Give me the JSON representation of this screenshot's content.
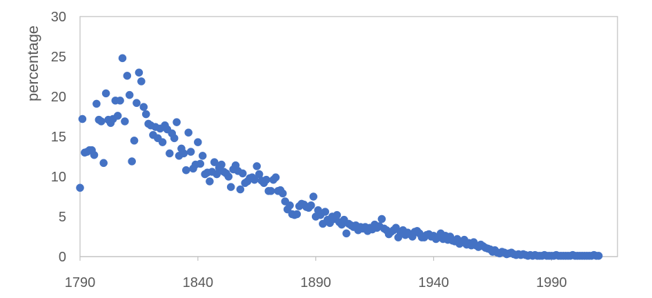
{
  "chart_data": {
    "type": "scatter",
    "title": "",
    "xlabel": "",
    "ylabel": "percentage",
    "xlim": [
      1790,
      2018
    ],
    "ylim": [
      0,
      30
    ],
    "xticks": [
      1790,
      1840,
      1890,
      1940,
      1990
    ],
    "yticks": [
      0,
      5,
      10,
      15,
      20,
      25,
      30
    ],
    "grid": false,
    "legend": "none",
    "colors": {
      "marker": "#4472C4",
      "axis": "#BFBFBF",
      "text": "#595959"
    },
    "series": [
      {
        "points": [
          [
            1790,
            8.6
          ],
          [
            1791,
            17.2
          ],
          [
            1792,
            13.0
          ],
          [
            1793,
            13.1
          ],
          [
            1794,
            13.3
          ],
          [
            1795,
            13.3
          ],
          [
            1796,
            12.7
          ],
          [
            1797,
            19.1
          ],
          [
            1798,
            17.1
          ],
          [
            1799,
            16.9
          ],
          [
            1800,
            11.7
          ],
          [
            1801,
            20.4
          ],
          [
            1802,
            17.1
          ],
          [
            1803,
            16.7
          ],
          [
            1804,
            17.2
          ],
          [
            1805,
            19.5
          ],
          [
            1806,
            17.6
          ],
          [
            1807,
            19.5
          ],
          [
            1808,
            24.8
          ],
          [
            1809,
            16.9
          ],
          [
            1810,
            22.6
          ],
          [
            1811,
            20.2
          ],
          [
            1812,
            11.9
          ],
          [
            1813,
            14.5
          ],
          [
            1814,
            19.2
          ],
          [
            1815,
            23.0
          ],
          [
            1816,
            21.9
          ],
          [
            1817,
            18.7
          ],
          [
            1818,
            17.8
          ],
          [
            1819,
            16.6
          ],
          [
            1820,
            16.4
          ],
          [
            1821,
            15.2
          ],
          [
            1822,
            16.2
          ],
          [
            1823,
            14.8
          ],
          [
            1824,
            16.0
          ],
          [
            1825,
            14.3
          ],
          [
            1826,
            16.4
          ],
          [
            1827,
            15.9
          ],
          [
            1828,
            12.9
          ],
          [
            1829,
            15.4
          ],
          [
            1830,
            14.8
          ],
          [
            1831,
            16.8
          ],
          [
            1832,
            12.6
          ],
          [
            1833,
            13.5
          ],
          [
            1834,
            12.9
          ],
          [
            1835,
            10.8
          ],
          [
            1836,
            15.5
          ],
          [
            1837,
            13.1
          ],
          [
            1838,
            11.0
          ],
          [
            1839,
            11.5
          ],
          [
            1840,
            14.3
          ],
          [
            1841,
            11.6
          ],
          [
            1842,
            12.6
          ],
          [
            1843,
            10.3
          ],
          [
            1844,
            10.5
          ],
          [
            1845,
            9.4
          ],
          [
            1846,
            10.6
          ],
          [
            1847,
            11.8
          ],
          [
            1848,
            10.3
          ],
          [
            1849,
            11.1
          ],
          [
            1850,
            11.5
          ],
          [
            1851,
            10.6
          ],
          [
            1852,
            10.4
          ],
          [
            1853,
            10.0
          ],
          [
            1854,
            8.7
          ],
          [
            1855,
            10.9
          ],
          [
            1856,
            11.4
          ],
          [
            1857,
            10.7
          ],
          [
            1858,
            8.4
          ],
          [
            1859,
            10.4
          ],
          [
            1860,
            9.2
          ],
          [
            1861,
            9.4
          ],
          [
            1862,
            9.8
          ],
          [
            1863,
            9.9
          ],
          [
            1864,
            9.6
          ],
          [
            1865,
            11.3
          ],
          [
            1866,
            10.3
          ],
          [
            1867,
            9.5
          ],
          [
            1868,
            9.2
          ],
          [
            1869,
            9.6
          ],
          [
            1870,
            8.2
          ],
          [
            1871,
            8.2
          ],
          [
            1872,
            9.6
          ],
          [
            1873,
            9.9
          ],
          [
            1874,
            8.2
          ],
          [
            1875,
            8.3
          ],
          [
            1876,
            7.9
          ],
          [
            1877,
            6.9
          ],
          [
            1878,
            5.9
          ],
          [
            1879,
            6.4
          ],
          [
            1880,
            5.3
          ],
          [
            1881,
            5.2
          ],
          [
            1882,
            5.3
          ],
          [
            1883,
            6.3
          ],
          [
            1884,
            6.6
          ],
          [
            1885,
            6.5
          ],
          [
            1886,
            6.2
          ],
          [
            1887,
            6.1
          ],
          [
            1888,
            6.4
          ],
          [
            1889,
            7.5
          ],
          [
            1890,
            5.0
          ],
          [
            1891,
            5.8
          ],
          [
            1892,
            5.2
          ],
          [
            1893,
            4.1
          ],
          [
            1894,
            5.6
          ],
          [
            1895,
            4.6
          ],
          [
            1896,
            4.2
          ],
          [
            1897,
            5.0
          ],
          [
            1898,
            4.7
          ],
          [
            1899,
            5.2
          ],
          [
            1900,
            4.3
          ],
          [
            1901,
            4.0
          ],
          [
            1902,
            4.6
          ],
          [
            1903,
            2.9
          ],
          [
            1904,
            4.1
          ],
          [
            1905,
            3.9
          ],
          [
            1906,
            3.7
          ],
          [
            1907,
            3.9
          ],
          [
            1908,
            3.3
          ],
          [
            1909,
            3.7
          ],
          [
            1910,
            3.5
          ],
          [
            1911,
            3.7
          ],
          [
            1912,
            3.2
          ],
          [
            1913,
            3.6
          ],
          [
            1914,
            3.4
          ],
          [
            1915,
            4.0
          ],
          [
            1916,
            3.6
          ],
          [
            1917,
            3.8
          ],
          [
            1918,
            4.7
          ],
          [
            1919,
            3.5
          ],
          [
            1920,
            3.3
          ],
          [
            1921,
            2.8
          ],
          [
            1922,
            3.1
          ],
          [
            1923,
            3.3
          ],
          [
            1924,
            3.6
          ],
          [
            1925,
            2.4
          ],
          [
            1926,
            3.0
          ],
          [
            1927,
            3.3
          ],
          [
            1928,
            2.7
          ],
          [
            1929,
            3.0
          ],
          [
            1930,
            2.8
          ],
          [
            1931,
            2.5
          ],
          [
            1932,
            3.1
          ],
          [
            1933,
            3.2
          ],
          [
            1934,
            2.9
          ],
          [
            1935,
            2.4
          ],
          [
            1936,
            2.4
          ],
          [
            1937,
            2.7
          ],
          [
            1938,
            2.8
          ],
          [
            1939,
            2.5
          ],
          [
            1940,
            2.6
          ],
          [
            1941,
            2.2
          ],
          [
            1942,
            2.4
          ],
          [
            1943,
            2.9
          ],
          [
            1944,
            2.2
          ],
          [
            1945,
            2.6
          ],
          [
            1946,
            2.1
          ],
          [
            1947,
            2.5
          ],
          [
            1948,
            2.0
          ],
          [
            1949,
            1.9
          ],
          [
            1950,
            2.2
          ],
          [
            1951,
            1.6
          ],
          [
            1952,
            1.8
          ],
          [
            1953,
            2.1
          ],
          [
            1954,
            1.5
          ],
          [
            1955,
            1.7
          ],
          [
            1956,
            1.4
          ],
          [
            1957,
            1.8
          ],
          [
            1958,
            1.4
          ],
          [
            1959,
            1.2
          ],
          [
            1960,
            1.5
          ],
          [
            1961,
            1.3
          ],
          [
            1962,
            1.1
          ],
          [
            1963,
            1.0
          ],
          [
            1964,
            0.9
          ],
          [
            1965,
            0.6
          ],
          [
            1966,
            0.8
          ],
          [
            1967,
            0.5
          ],
          [
            1968,
            0.4
          ],
          [
            1969,
            0.6
          ],
          [
            1970,
            0.5
          ],
          [
            1971,
            0.3
          ],
          [
            1972,
            0.4
          ],
          [
            1973,
            0.5
          ],
          [
            1974,
            0.3
          ],
          [
            1975,
            0.2
          ],
          [
            1976,
            0.3
          ],
          [
            1977,
            0.2
          ],
          [
            1978,
            0.3
          ],
          [
            1979,
            0.2
          ],
          [
            1980,
            0.1
          ],
          [
            1981,
            0.2
          ],
          [
            1982,
            0.1
          ],
          [
            1983,
            0.2
          ],
          [
            1984,
            0.1
          ],
          [
            1985,
            0.1
          ],
          [
            1986,
            0.1
          ],
          [
            1987,
            0.2
          ],
          [
            1988,
            0.1
          ],
          [
            1989,
            0.1
          ],
          [
            1990,
            0.1
          ],
          [
            1991,
            0.1
          ],
          [
            1992,
            0.2
          ],
          [
            1993,
            0.1
          ],
          [
            1994,
            0.1
          ],
          [
            1995,
            0.1
          ],
          [
            1996,
            0.1
          ],
          [
            1997,
            0.1
          ],
          [
            1998,
            0.1
          ],
          [
            1999,
            0.2
          ],
          [
            2000,
            0.1
          ],
          [
            2001,
            0.1
          ],
          [
            2002,
            0.1
          ],
          [
            2003,
            0.1
          ],
          [
            2004,
            0.1
          ],
          [
            2005,
            0.1
          ],
          [
            2006,
            0.1
          ],
          [
            2007,
            0.1
          ],
          [
            2008,
            0.2
          ],
          [
            2009,
            0.1
          ],
          [
            2010,
            0.1
          ]
        ]
      }
    ]
  }
}
